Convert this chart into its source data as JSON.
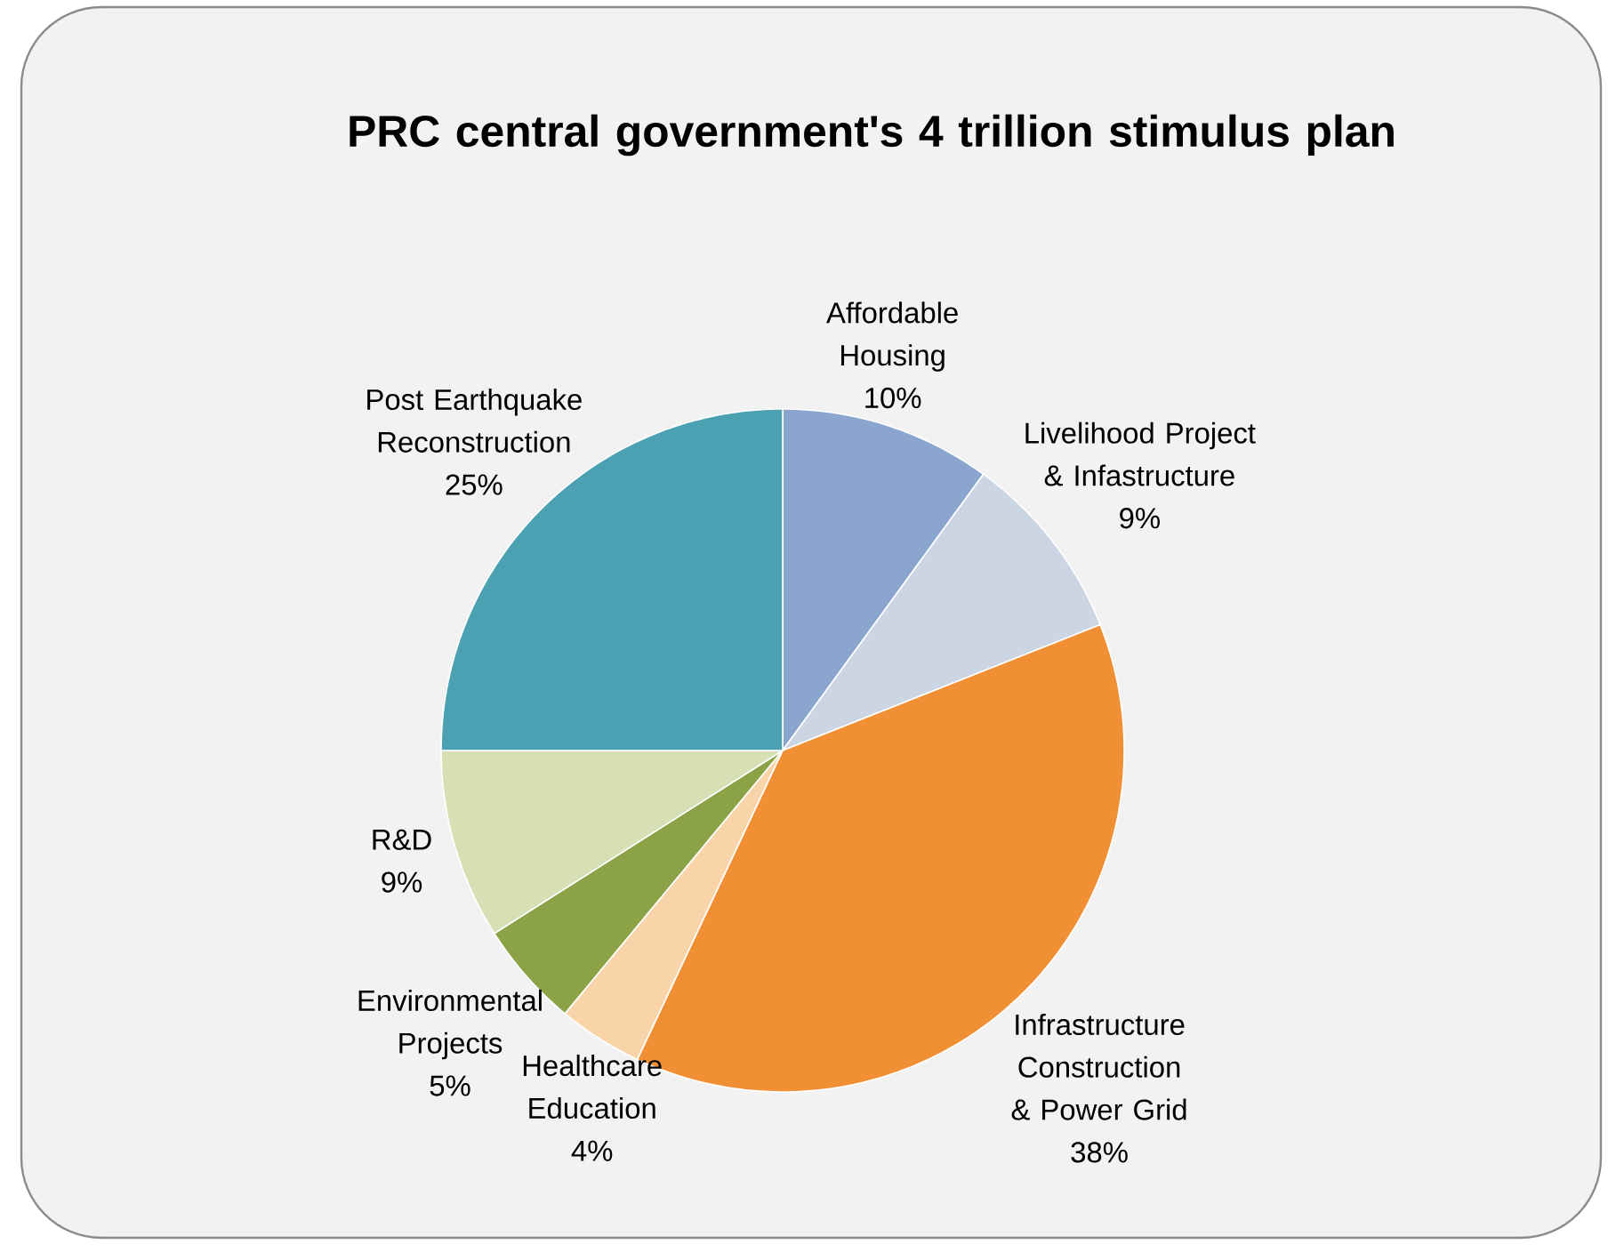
{
  "chart_data": {
    "type": "pie",
    "title": "PRC central government's 4 trillion stimulus plan",
    "categories": [
      "Affordable Housing",
      "Livelihood Project & Infastructure",
      "Infrastructure Construction & Power Grid",
      "Healthcare Education",
      "Environmental Projects",
      "R&D",
      "Post Earthquake Reconstruction"
    ],
    "values": [
      10,
      9,
      38,
      4,
      5,
      9,
      25
    ],
    "value_labels": [
      "10%",
      "9%",
      "38%",
      "4%",
      "5%",
      "9%",
      "25%"
    ],
    "colors": [
      "#8aa6cf",
      "#cbd5e3",
      "#f08f33",
      "#f9d4a8",
      "#8ba346",
      "#d6e0b4",
      "#4ba0b2"
    ]
  }
}
